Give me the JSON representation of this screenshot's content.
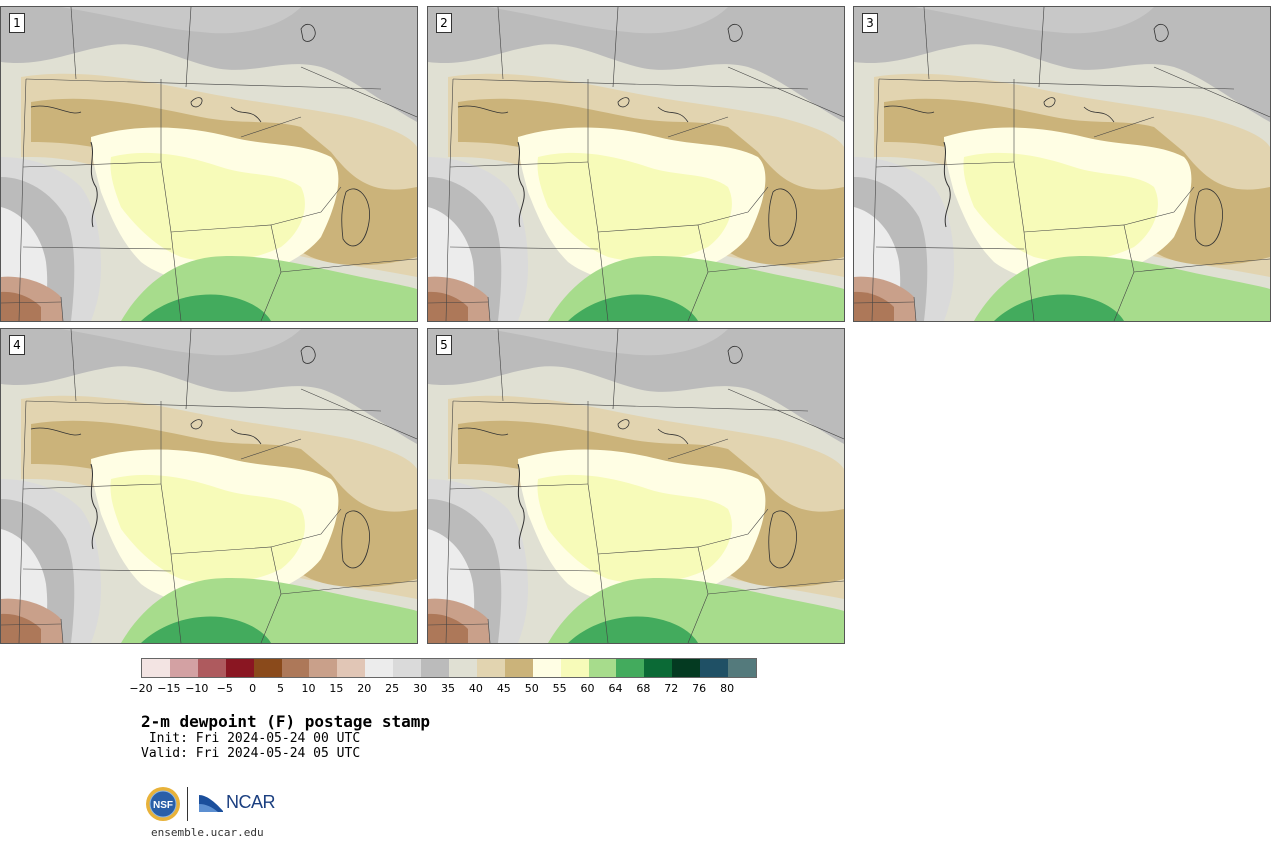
{
  "panels": [
    {
      "label": "1"
    },
    {
      "label": "2"
    },
    {
      "label": "3"
    },
    {
      "label": "4"
    },
    {
      "label": "5"
    }
  ],
  "colorbar": {
    "ticks": [
      "−20",
      "−15",
      "−10",
      "−5",
      "0",
      "5",
      "10",
      "15",
      "20",
      "25",
      "30",
      "35",
      "40",
      "45",
      "50",
      "55",
      "60",
      "64",
      "68",
      "72",
      "76",
      "80"
    ],
    "colors": [
      "#f3e4e3",
      "#d3a1a3",
      "#ae5a5e",
      "#8a1622",
      "#8a4a1b",
      "#ad7859",
      "#c9a08a",
      "#e1c6b6",
      "#ececec",
      "#dadada",
      "#bbbbbb",
      "#e0e0d3",
      "#e2d4b0",
      "#cbb37a",
      "#fffee4",
      "#f7fbb9",
      "#a7dc8c",
      "#43ab5d",
      "#0b6a36",
      "#043a21",
      "#1f5065",
      "#547a7c"
    ]
  },
  "title": "2-m dewpoint (F) postage stamp",
  "init": " Init: Fri 2024-05-24 00 UTC",
  "valid": "Valid: Fri 2024-05-24 05 UTC",
  "logos": {
    "nsf": "NSF",
    "ncar": "NCAR"
  },
  "website": "ensemble.ucar.edu"
}
